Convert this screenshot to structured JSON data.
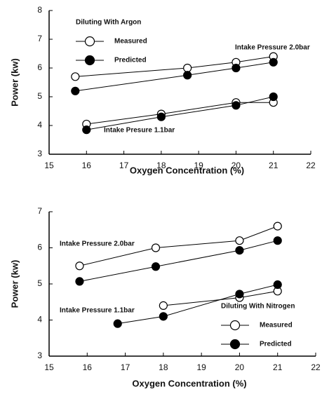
{
  "chart_data": [
    {
      "type": "line",
      "legend_title": "Diluting With Argon",
      "xlabel": "Oxygen Concentration (%)",
      "ylabel": "Power (kw)",
      "xlim": [
        15,
        22
      ],
      "xticks": [
        15,
        16,
        17,
        18,
        19,
        20,
        21,
        22
      ],
      "ylim": [
        3,
        8
      ],
      "yticks": [
        3,
        4,
        5,
        6,
        7,
        8
      ],
      "legend": [
        {
          "name": "Measured",
          "marker": "open"
        },
        {
          "name": "Predicted",
          "marker": "filled"
        }
      ],
      "annotations": [
        "Intake Pressure 2.0bar",
        "Intake Presure 1.1bar"
      ],
      "series": [
        {
          "marker": "open",
          "color": "#000000",
          "x": [
            15.7,
            18.7,
            20,
            21
          ],
          "values": [
            5.7,
            6.0,
            6.2,
            6.4
          ]
        },
        {
          "marker": "filled",
          "color": "#000000",
          "x": [
            15.7,
            18.7,
            20,
            21
          ],
          "values": [
            5.2,
            5.75,
            6.0,
            6.2
          ]
        },
        {
          "marker": "open",
          "color": "#000000",
          "x": [
            16,
            18,
            20,
            21
          ],
          "values": [
            4.05,
            4.4,
            4.8,
            4.8
          ]
        },
        {
          "marker": "filled",
          "color": "#000000",
          "x": [
            16,
            18,
            20,
            21
          ],
          "values": [
            3.85,
            4.3,
            4.7,
            5.0
          ]
        }
      ]
    },
    {
      "type": "line",
      "legend_title": "Diluting With Nitrogen",
      "xlabel": "Oxygen Concentration (%)",
      "ylabel": "Power (kw)",
      "xlim": [
        15,
        22
      ],
      "xticks": [
        15,
        16,
        17,
        18,
        19,
        20,
        21,
        22
      ],
      "ylim": [
        3,
        7
      ],
      "yticks": [
        3,
        4,
        5,
        6,
        7
      ],
      "legend": [
        {
          "name": "Measured",
          "marker": "open"
        },
        {
          "name": "Predicted",
          "marker": "filled"
        }
      ],
      "annotations": [
        "Intake Pressure 2.0bar",
        "Intake Pressure 1.1bar"
      ],
      "series": [
        {
          "marker": "open",
          "color": "#000000",
          "x": [
            15.8,
            17.8,
            20,
            21
          ],
          "values": [
            5.5,
            6.0,
            6.2,
            6.6
          ]
        },
        {
          "marker": "filled",
          "color": "#000000",
          "x": [
            15.8,
            17.8,
            20,
            21
          ],
          "values": [
            5.07,
            5.48,
            5.93,
            6.2
          ]
        },
        {
          "marker": "open",
          "color": "#000000",
          "x": [
            18,
            20,
            21
          ],
          "values": [
            4.4,
            4.62,
            4.8
          ]
        },
        {
          "marker": "filled",
          "color": "#000000",
          "x": [
            16.8,
            18,
            20,
            21
          ],
          "values": [
            3.9,
            4.1,
            4.72,
            4.98
          ]
        }
      ]
    }
  ]
}
